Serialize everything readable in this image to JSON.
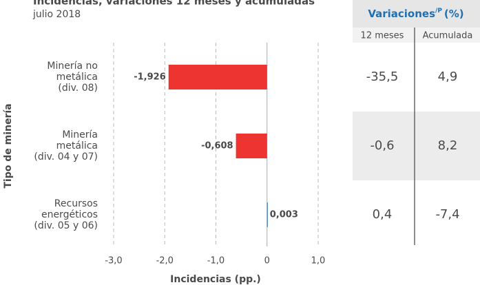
{
  "chart_data": {
    "type": "hbar",
    "title": "Incidencias, variaciones 12 meses y acumuladas",
    "subtitle": "julio 2018",
    "x_label": "Incidencias (pp.)",
    "y_label": "Tipo de minería",
    "categories": [
      [
        "Minería no",
        "metálica",
        "(div. 08)"
      ],
      [
        "Minería",
        "metálica",
        "(div. 04 y 07)"
      ],
      [
        "Recursos",
        "energéticos",
        "(div. 05 y 06)"
      ]
    ],
    "values": [
      -1.926,
      -0.608,
      0.003
    ],
    "value_labels": [
      "-1,926",
      "-0,608",
      "0,003"
    ],
    "negative_color": "#ee3430",
    "positive_color": "#1f6fb2",
    "xlim": [
      -3,
      1
    ],
    "xticks": [
      {
        "value": -3,
        "label": "-3,0"
      },
      {
        "value": -2,
        "label": "-2,0"
      },
      {
        "value": -1,
        "label": "-1,0"
      },
      0,
      {
        "value": 1,
        "label": "1,0"
      }
    ],
    "grid": true
  },
  "table": {
    "title": "Variaciones",
    "title_sup": "/P",
    "title_unit": "(%)",
    "columns": [
      "12 meses",
      "Acumulada"
    ],
    "rows": [
      [
        "-35,5",
        "4,9"
      ],
      [
        "-0,6",
        "8,2"
      ],
      [
        "0,4",
        "-7,4"
      ]
    ]
  }
}
